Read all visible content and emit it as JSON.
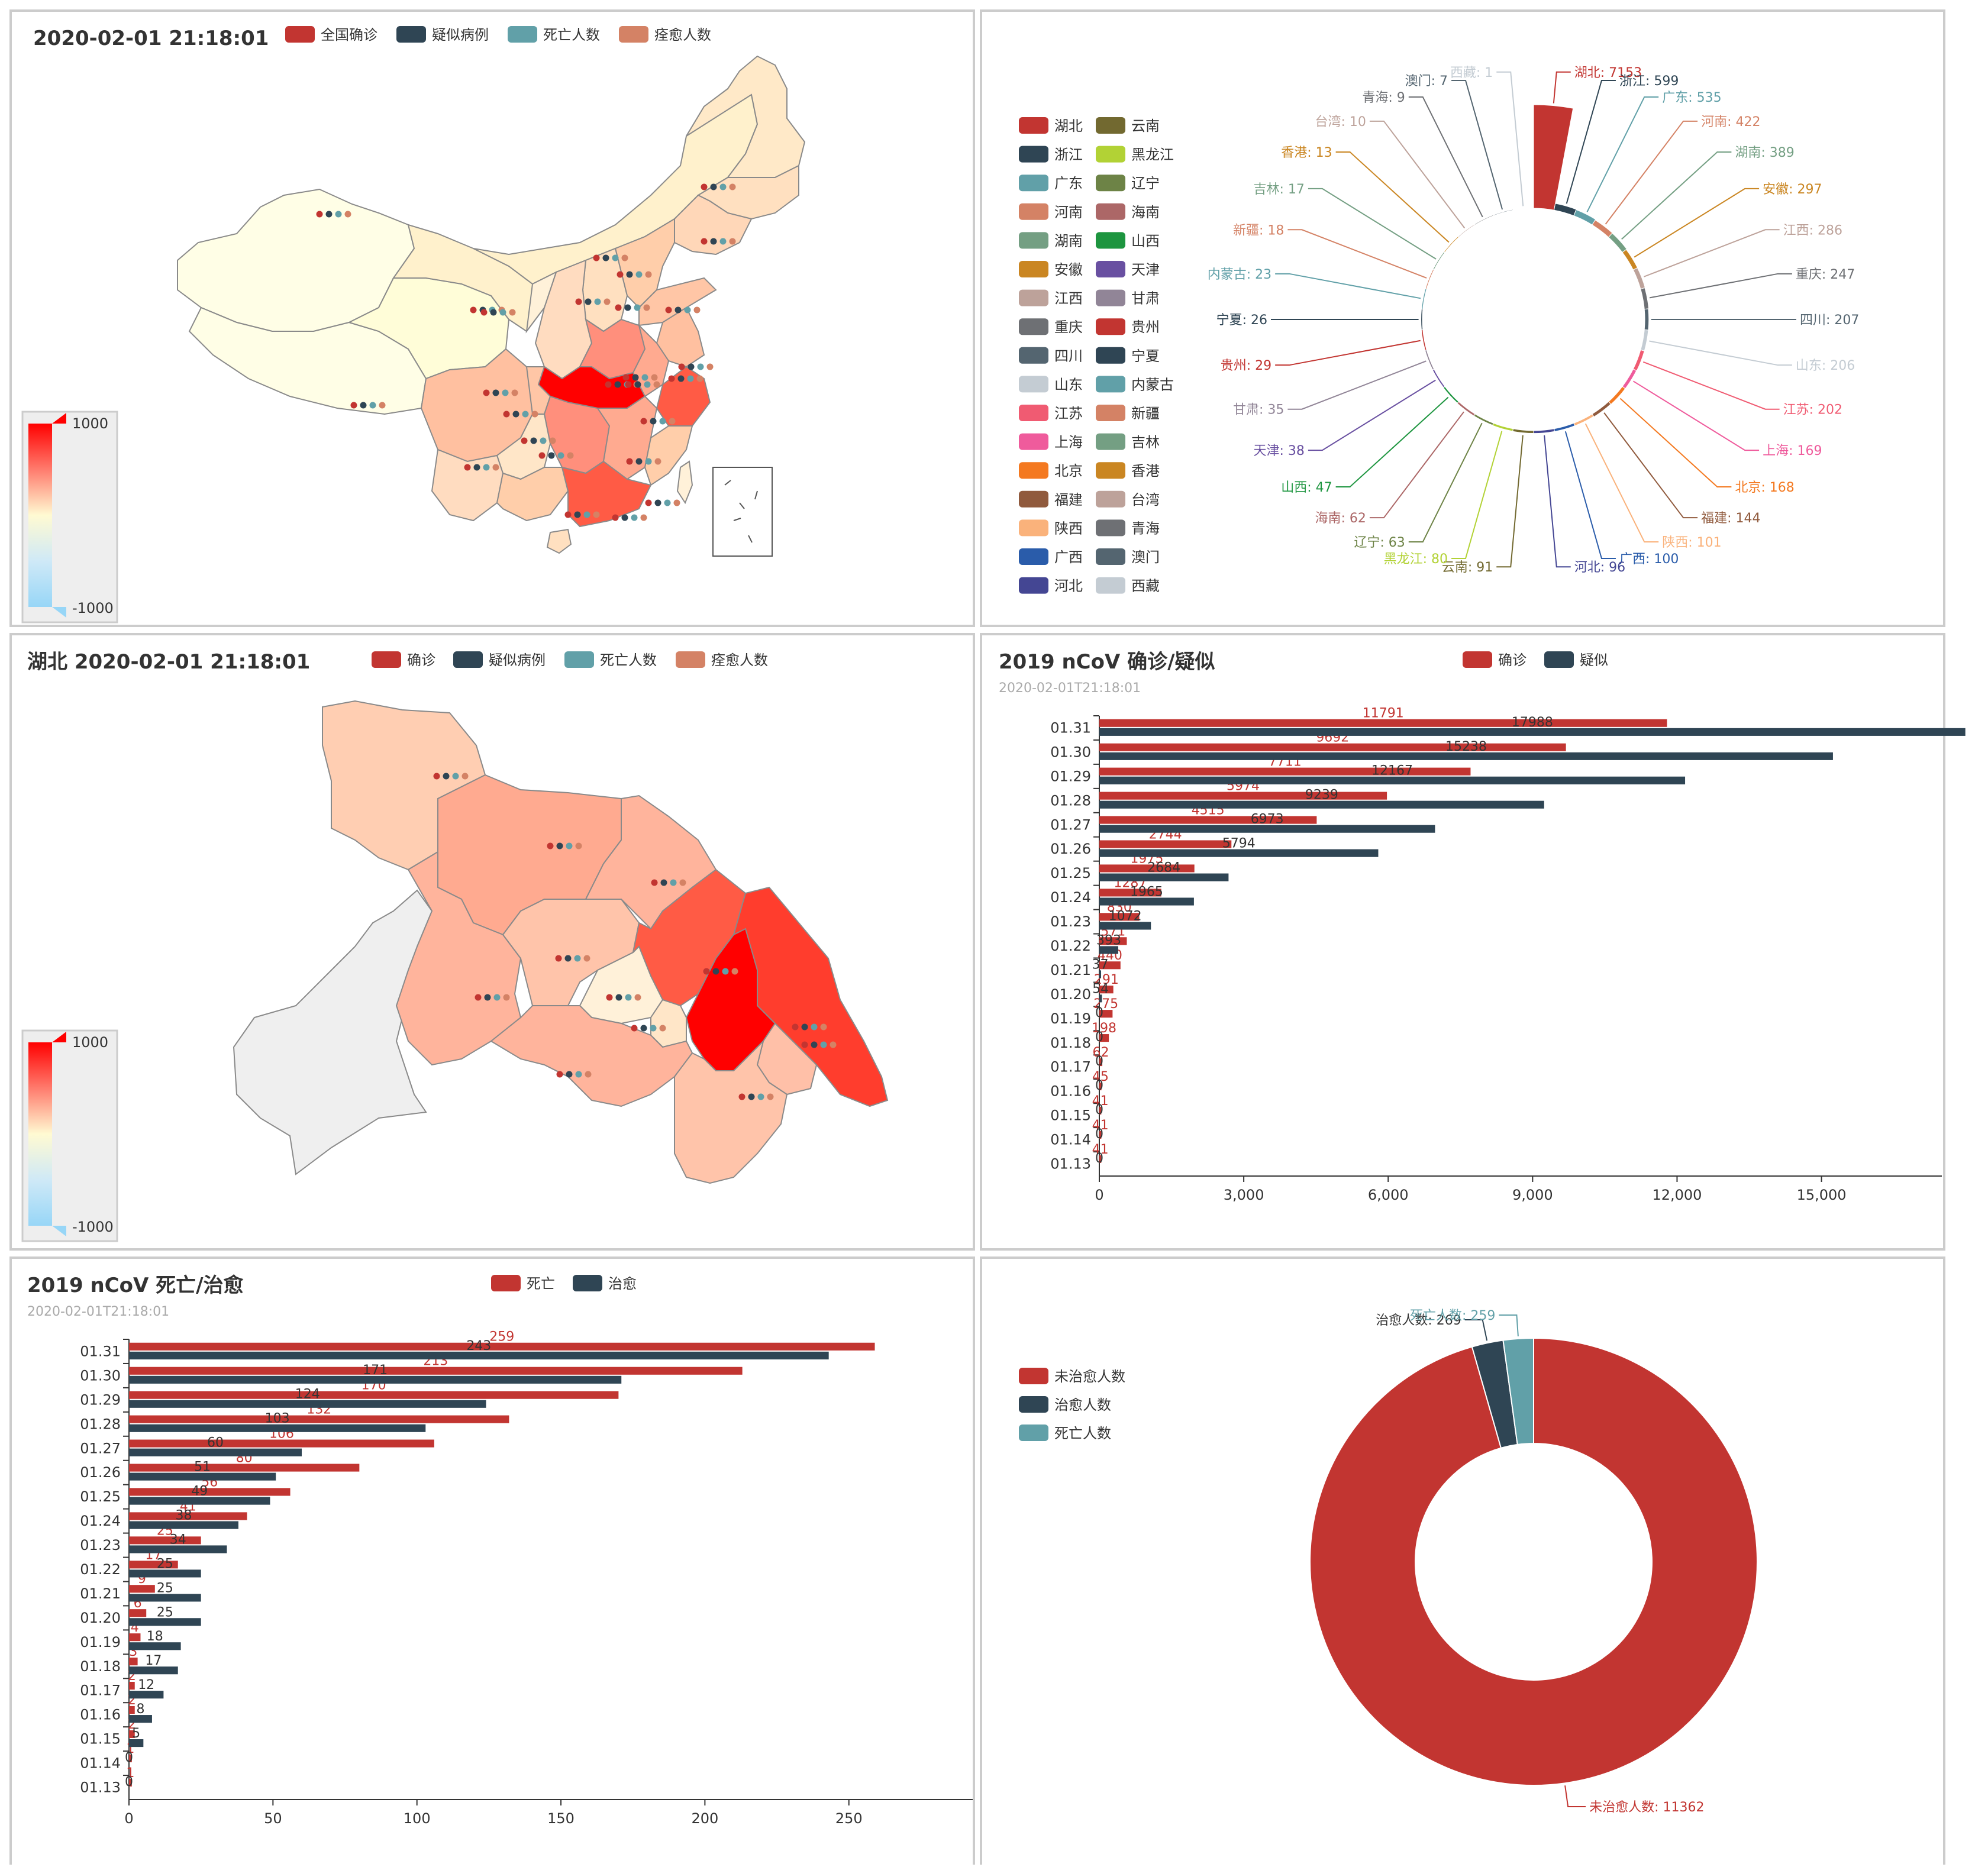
{
  "colors": {
    "red": "#c23531",
    "navy": "#2f4554",
    "teal": "#61a0a8",
    "salmon": "#d48265",
    "palette": [
      "#c23531",
      "#2f4554",
      "#61a0a8",
      "#d48265",
      "#749f83",
      "#ca8622",
      "#bda29a",
      "#6e7074",
      "#546570",
      "#c4ccd3",
      "#f05b72",
      "#ef5b9c",
      "#f47920",
      "#905a3d",
      "#fab27b",
      "#2a5caa",
      "#444693",
      "#726930",
      "#b2d235",
      "#6d8346",
      "#ac6767",
      "#1d953f",
      "#6950a1",
      "#918597"
    ]
  },
  "panel1": {
    "title": "2020-02-01 21:18:01",
    "legend": [
      "全国确诊",
      "疑似病例",
      "死亡人数",
      "痊愈人数"
    ],
    "visualmap": {
      "max": "1000",
      "min": "-1000"
    }
  },
  "panel2": {
    "legend": [
      "湖北",
      "浙江",
      "广东",
      "河南",
      "湖南",
      "安徽",
      "江西",
      "重庆",
      "四川",
      "山东",
      "江苏",
      "上海",
      "北京",
      "福建",
      "陕西",
      "广西",
      "河北",
      "云南",
      "黑龙江",
      "辽宁",
      "海南",
      "山西",
      "天津",
      "甘肃",
      "贵州",
      "宁夏",
      "内蒙古",
      "新疆",
      "吉林",
      "香港",
      "台湾",
      "青海",
      "澳门",
      "西藏"
    ],
    "chart_data": {
      "type": "pie",
      "rose": "radius",
      "slices": [
        {
          "name": "湖北",
          "value": 7153
        },
        {
          "name": "浙江",
          "value": 599
        },
        {
          "name": "广东",
          "value": 535
        },
        {
          "name": "河南",
          "value": 422
        },
        {
          "name": "湖南",
          "value": 389
        },
        {
          "name": "安徽",
          "value": 297
        },
        {
          "name": "江西",
          "value": 286
        },
        {
          "name": "重庆",
          "value": 247
        },
        {
          "name": "四川",
          "value": 207
        },
        {
          "name": "山东",
          "value": 206
        },
        {
          "name": "江苏",
          "value": 202
        },
        {
          "name": "上海",
          "value": 169
        },
        {
          "name": "北京",
          "value": 168
        },
        {
          "name": "福建",
          "value": 144
        },
        {
          "name": "陕西",
          "value": 101
        },
        {
          "name": "广西",
          "value": 100
        },
        {
          "name": "河北",
          "value": 96
        },
        {
          "name": "云南",
          "value": 91
        },
        {
          "name": "黑龙江",
          "value": 80
        },
        {
          "name": "辽宁",
          "value": 63
        },
        {
          "name": "海南",
          "value": 62
        },
        {
          "name": "山西",
          "value": 47
        },
        {
          "name": "天津",
          "value": 38
        },
        {
          "name": "甘肃",
          "value": 35
        },
        {
          "name": "贵州",
          "value": 29
        },
        {
          "name": "宁夏",
          "value": 26
        },
        {
          "name": "内蒙古",
          "value": 23
        },
        {
          "name": "新疆",
          "value": 18
        },
        {
          "name": "吉林",
          "value": 17
        },
        {
          "name": "香港",
          "value": 13
        },
        {
          "name": "台湾",
          "value": 10
        },
        {
          "name": "青海",
          "value": 9
        },
        {
          "name": "澳门",
          "value": 7
        },
        {
          "name": "西藏",
          "value": 1
        }
      ]
    }
  },
  "panel3": {
    "title": "湖北 2020-02-01 21:18:01",
    "legend": [
      "确诊",
      "疑似病例",
      "死亡人数",
      "痊愈人数"
    ],
    "visualmap": {
      "max": "1000",
      "min": "-1000"
    }
  },
  "panel4": {
    "title": "2019 nCoV 确诊/疑似",
    "subtitle": "2020-02-01T21:18:01",
    "legend": [
      "确诊",
      "疑似"
    ],
    "chart_data": {
      "type": "bar",
      "orientation": "horizontal",
      "categories": [
        "01.13",
        "01.14",
        "01.15",
        "01.16",
        "01.17",
        "01.18",
        "01.19",
        "01.20",
        "01.21",
        "01.22",
        "01.23",
        "01.24",
        "01.25",
        "01.26",
        "01.27",
        "01.28",
        "01.29",
        "01.30",
        "01.31"
      ],
      "series": [
        {
          "name": "确诊",
          "values": [
            41,
            41,
            41,
            45,
            62,
            198,
            275,
            291,
            440,
            571,
            830,
            1287,
            1975,
            2744,
            4515,
            5974,
            7711,
            9692,
            11791
          ]
        },
        {
          "name": "疑似",
          "values": [
            0,
            0,
            0,
            0,
            0,
            0,
            0,
            54,
            37,
            393,
            1072,
            1965,
            2684,
            5794,
            6973,
            9239,
            12167,
            15238,
            17988
          ]
        }
      ],
      "xlim": [
        0,
        17500
      ],
      "xticks": [
        "0",
        "3,000",
        "6,000",
        "9,000",
        "12,000",
        "15,000"
      ]
    }
  },
  "panel5": {
    "title": "2019 nCoV 死亡/治愈",
    "subtitle": "2020-02-01T21:18:01",
    "legend": [
      "死亡",
      "治愈"
    ],
    "chart_data": {
      "type": "bar",
      "orientation": "horizontal",
      "categories": [
        "01.13",
        "01.14",
        "01.15",
        "01.16",
        "01.17",
        "01.18",
        "01.19",
        "01.20",
        "01.21",
        "01.22",
        "01.23",
        "01.24",
        "01.25",
        "01.26",
        "01.27",
        "01.28",
        "01.29",
        "01.30",
        "01.31"
      ],
      "series": [
        {
          "name": "死亡",
          "values": [
            1,
            1,
            2,
            2,
            2,
            3,
            4,
            6,
            9,
            17,
            25,
            41,
            56,
            80,
            106,
            132,
            170,
            213,
            259
          ]
        },
        {
          "name": "治愈",
          "values": [
            0,
            0,
            5,
            8,
            12,
            17,
            18,
            25,
            25,
            25,
            34,
            38,
            49,
            51,
            60,
            103,
            124,
            171,
            243
          ]
        }
      ],
      "xlim": [
        0,
        293
      ],
      "xticks": [
        "0",
        "50",
        "100",
        "150",
        "200",
        "250"
      ]
    }
  },
  "panel6": {
    "legend": [
      "未治愈人数",
      "治愈人数",
      "死亡人数"
    ],
    "chart_data": {
      "type": "pie",
      "donut": true,
      "slices": [
        {
          "name": "未治愈人数",
          "value": 11362
        },
        {
          "name": "治愈人数",
          "value": 269
        },
        {
          "name": "死亡人数",
          "value": 259
        }
      ]
    }
  }
}
